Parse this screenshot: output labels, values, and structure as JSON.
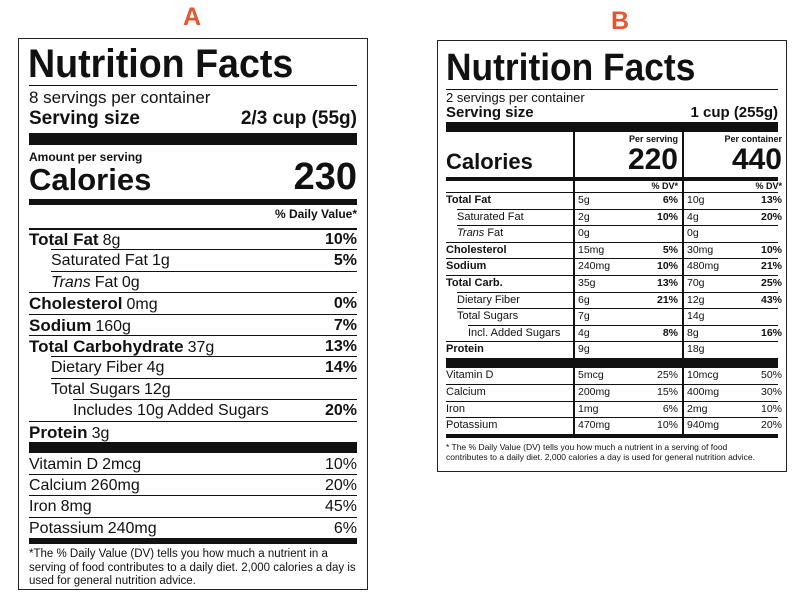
{
  "label_a": {
    "letter": "A",
    "title": "Nutrition Facts",
    "servings": "8 servings per container",
    "serving_size_label": "Serving size",
    "serving_size": "2/3 cup (55g)",
    "amount_label": "Amount per serving",
    "calories_label": "Calories",
    "calories": "230",
    "dv_header": "% Daily Value*",
    "nutrients": [
      {
        "name": "Total Fat",
        "amount": "8g",
        "dv": "10%"
      },
      {
        "name": "Saturated Fat",
        "amount": "1g",
        "dv": "5%"
      },
      {
        "name_italic": "Trans",
        "name": "Fat",
        "amount": "0g"
      },
      {
        "name": "Cholesterol",
        "amount": "0mg",
        "dv": "0%"
      },
      {
        "name": "Sodium",
        "amount": "160g",
        "dv": "7%"
      },
      {
        "name": "Total Carbohydrate",
        "amount": "37g",
        "dv": "13%"
      },
      {
        "name": "Dietary Fiber",
        "amount": "4g",
        "dv": "14%"
      },
      {
        "name": "Total Sugars",
        "amount": "12g"
      },
      {
        "name": "Includes 10g Added Sugars",
        "dv": "20%"
      },
      {
        "name": "Protein",
        "amount": "3g"
      }
    ],
    "vitamins": [
      {
        "name": "Vitamin D",
        "amount": "2mcg",
        "dv": "10%"
      },
      {
        "name": "Calcium",
        "amount": "260mg",
        "dv": "20%"
      },
      {
        "name": "Iron",
        "amount": "8mg",
        "dv": "45%"
      },
      {
        "name": "Potassium",
        "amount": "240mg",
        "dv": "6%"
      }
    ],
    "footnote": "*The % Daily Value (DV) tells you how much a nutrient in a serving of food contributes to a daily diet. 2,000 calories a day is used for general nutrition advice."
  },
  "label_b": {
    "letter": "B",
    "title": "Nutrition Facts",
    "servings": "2 servings per container",
    "serving_size_label": "Serving size",
    "serving_size": "1 cup (255g)",
    "per_serving_header": "Per serving",
    "per_container_header": "Per container",
    "calories_label": "Calories",
    "calories_serving": "220",
    "calories_container": "440",
    "dv_header_serving": "% DV*",
    "dv_header_container": "% DV*",
    "nutrients": [
      {
        "name": "Total Fat",
        "serving": {
          "amount": "5g",
          "dv": "6%"
        },
        "container": {
          "amount": "10g",
          "dv": "13%"
        }
      },
      {
        "name": "Saturated Fat",
        "serving": {
          "amount": "2g",
          "dv": "10%"
        },
        "container": {
          "amount": "4g",
          "dv": "20%"
        }
      },
      {
        "name_italic": "Trans",
        "name": "Fat",
        "serving": {
          "amount": "0g"
        },
        "container": {
          "amount": "0g"
        }
      },
      {
        "name": "Cholesterol",
        "serving": {
          "amount": "15mg",
          "dv": "5%"
        },
        "container": {
          "amount": "30mg",
          "dv": "10%"
        }
      },
      {
        "name": "Sodium",
        "serving": {
          "amount": "240mg",
          "dv": "10%"
        },
        "container": {
          "amount": "480mg",
          "dv": "21%"
        }
      },
      {
        "name": "Total Carb.",
        "serving": {
          "amount": "35g",
          "dv": "13%"
        },
        "container": {
          "amount": "70g",
          "dv": "25%"
        }
      },
      {
        "name": "Dietary Fiber",
        "serving": {
          "amount": "6g",
          "dv": "21%"
        },
        "container": {
          "amount": "12g",
          "dv": "43%"
        }
      },
      {
        "name": "Total Sugars",
        "serving": {
          "amount": "7g"
        },
        "container": {
          "amount": "14g"
        }
      },
      {
        "name": "Incl. Added Sugars",
        "serving": {
          "amount": "4g",
          "dv": "8%"
        },
        "container": {
          "amount": "8g",
          "dv": "16%"
        }
      },
      {
        "name": "Protein",
        "serving": {
          "amount": "9g"
        },
        "container": {
          "amount": "18g"
        }
      }
    ],
    "vitamins": [
      {
        "name": "Vitamin D",
        "serving": {
          "amount": "5mcg",
          "dv": "25%"
        },
        "container": {
          "amount": "10mcg",
          "dv": "50%"
        }
      },
      {
        "name": "Calcium",
        "serving": {
          "amount": "200mg",
          "dv": "15%"
        },
        "container": {
          "amount": "400mg",
          "dv": "30%"
        }
      },
      {
        "name": "Iron",
        "serving": {
          "amount": "1mg",
          "dv": "6%"
        },
        "container": {
          "amount": "2mg",
          "dv": "10%"
        }
      },
      {
        "name": "Potassium",
        "serving": {
          "amount": "470mg",
          "dv": "10%"
        },
        "container": {
          "amount": "940mg",
          "dv": "20%"
        }
      }
    ],
    "footnote": "* The % Daily Value (DV) tells you how much a nutrient in a serving of food contributes to a daily diet. 2,000 calories a day is used for general nutrition advice."
  }
}
